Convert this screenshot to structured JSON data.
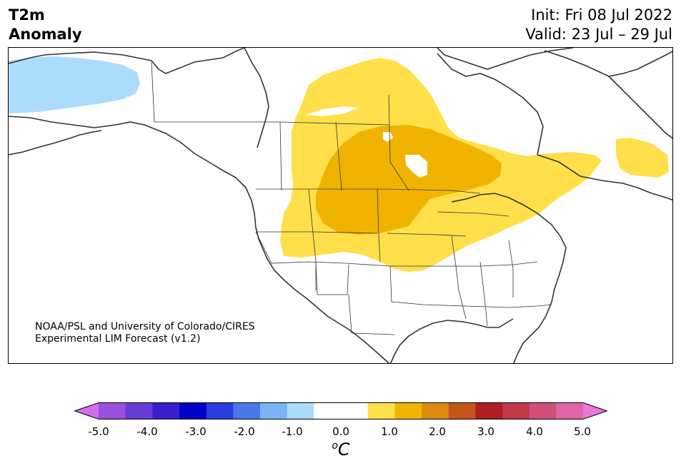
{
  "header": {
    "title_line1": "T2m",
    "title_line2": "Anomaly",
    "init": "Init: Fri 08 Jul 2022",
    "valid": "Valid: 23 Jul – 29 Jul"
  },
  "credit": {
    "line1": "NOAA/PSL and University of Colorado/CIRES",
    "line2": "Experimental LIM Forecast (v1.2)"
  },
  "colorbar": {
    "colors": [
      "#d36ee8",
      "#9a50e0",
      "#6a3ad6",
      "#3a1fcc",
      "#0000c8",
      "#2a3ee0",
      "#4a78ea",
      "#78b4f4",
      "#acdcfc",
      "#ffffff",
      "#ffffff",
      "#ffe04a",
      "#f0b400",
      "#de8a10",
      "#c4561a",
      "#b01e22",
      "#c0384a",
      "#d0507a",
      "#e064a8",
      "#e878d8"
    ],
    "ticks": [
      "-5.0",
      "-4.0",
      "-3.0",
      "-2.0",
      "-1.0",
      "0.0",
      "1.0",
      "2.0",
      "3.0",
      "4.0",
      "5.0"
    ],
    "unit_base": "C",
    "unit_sup": "o"
  },
  "map_colors": {
    "cold_light": "#acdcfc",
    "warm_light": "#ffe04a",
    "warm_mid": "#f0b400",
    "coast": "#333333"
  }
}
